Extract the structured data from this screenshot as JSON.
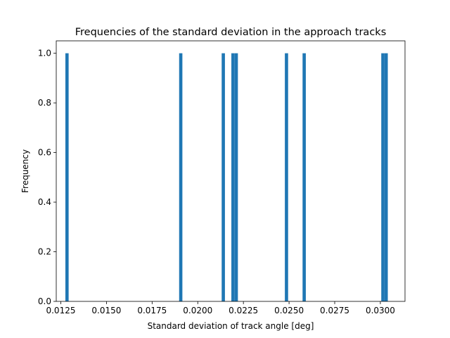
{
  "chart_data": {
    "type": "bar",
    "title": "Frequencies of the standard deviation in the approach tracks",
    "xlabel": "Standard deviation of track angle [deg]",
    "ylabel": "Frequency",
    "xlim": [
      0.01225,
      0.03135
    ],
    "ylim": [
      0,
      1.05
    ],
    "bin_width": 0.000178,
    "xticks": [
      0.0125,
      0.015,
      0.0175,
      0.02,
      0.0225,
      0.025,
      0.0275,
      0.03
    ],
    "xtick_labels": [
      "0.0125",
      "0.0150",
      "0.0175",
      "0.0200",
      "0.0225",
      "0.0250",
      "0.0275",
      "0.0300"
    ],
    "yticks": [
      0.0,
      0.2,
      0.4,
      0.6,
      0.8,
      1.0
    ],
    "ytick_labels": [
      "0.0",
      "0.2",
      "0.4",
      "0.6",
      "0.8",
      "1.0"
    ],
    "bin_starts": [
      0.01275,
      0.01898,
      0.02131,
      0.02184,
      0.02202,
      0.02477,
      0.02574,
      0.03005,
      0.03023
    ],
    "values": [
      1,
      1,
      1,
      1,
      1,
      1,
      1,
      1,
      1
    ],
    "bar_color": "#1f77b4",
    "grid": false,
    "legend": "none"
  }
}
